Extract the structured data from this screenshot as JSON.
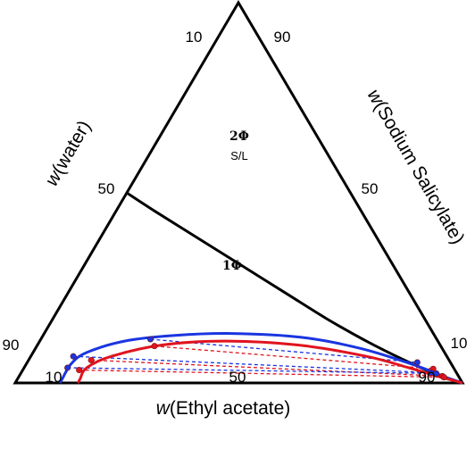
{
  "chart_data": {
    "type": "ternary",
    "axes": {
      "bottom": {
        "label": "Ethyl acetate",
        "ticks": [
          "10",
          "50",
          "90"
        ]
      },
      "left": {
        "label": "water",
        "ticks": [
          "90",
          "50",
          "10"
        ]
      },
      "right": {
        "label": "Sodium Salicylate",
        "ticks": [
          "10",
          "50",
          "90"
        ]
      },
      "label_prefix": "w"
    },
    "regions": [
      {
        "label": "2Φ",
        "sublabel": "S/L"
      },
      {
        "label": "1Φ",
        "sublabel": ""
      }
    ],
    "colors": {
      "frame": "#000000",
      "series_a": "#1a35e0",
      "series_b": "#e0141e"
    },
    "solubility_curve": {
      "comment": "values given as [w_water, w_sodium_salicylate]",
      "points": [
        [
          50,
          50
        ],
        [
          46,
          45
        ],
        [
          40,
          38
        ],
        [
          34,
          31
        ],
        [
          28,
          24
        ],
        [
          22,
          17
        ],
        [
          16,
          11
        ],
        [
          10,
          6
        ],
        [
          5,
          2.5
        ],
        [
          0,
          0
        ]
      ]
    },
    "binodal_blue": [
      [
        90,
        0
      ],
      [
        89,
        1
      ],
      [
        85,
        5
      ],
      [
        80,
        8
      ],
      [
        70,
        11
      ],
      [
        58,
        12.5
      ],
      [
        45,
        13
      ],
      [
        30,
        12
      ],
      [
        18,
        9
      ],
      [
        8,
        4.5
      ],
      [
        3,
        1.5
      ],
      [
        0,
        0
      ]
    ],
    "binodal_red": [
      [
        86,
        0
      ],
      [
        85,
        1
      ],
      [
        82,
        4
      ],
      [
        75,
        7
      ],
      [
        62,
        10
      ],
      [
        48,
        11
      ],
      [
        32,
        10
      ],
      [
        18,
        7
      ],
      [
        10,
        4
      ],
      [
        4,
        1.5
      ],
      [
        0,
        0
      ]
    ],
    "tielines_blue": [
      {
        "end1": [
          83.5,
          7
        ],
        "end2": [
          5.6,
          2.7
        ]
      },
      {
        "end1": [
          64,
          11.5
        ],
        "end2": [
          7.4,
          5.4
        ]
      },
      {
        "end1": [
          86.3,
          4
        ],
        "end2": [
          4.6,
          2.5
        ]
      }
    ],
    "tielines_red": [
      {
        "end1": [
          80,
          6
        ],
        "end2": [
          3.6,
          1.8
        ]
      },
      {
        "end1": [
          64,
          9.7
        ],
        "end2": [
          4.7,
          3.7
        ]
      },
      {
        "end1": [
          84,
          3.4
        ],
        "end2": [
          3.4,
          1.5
        ]
      }
    ]
  }
}
